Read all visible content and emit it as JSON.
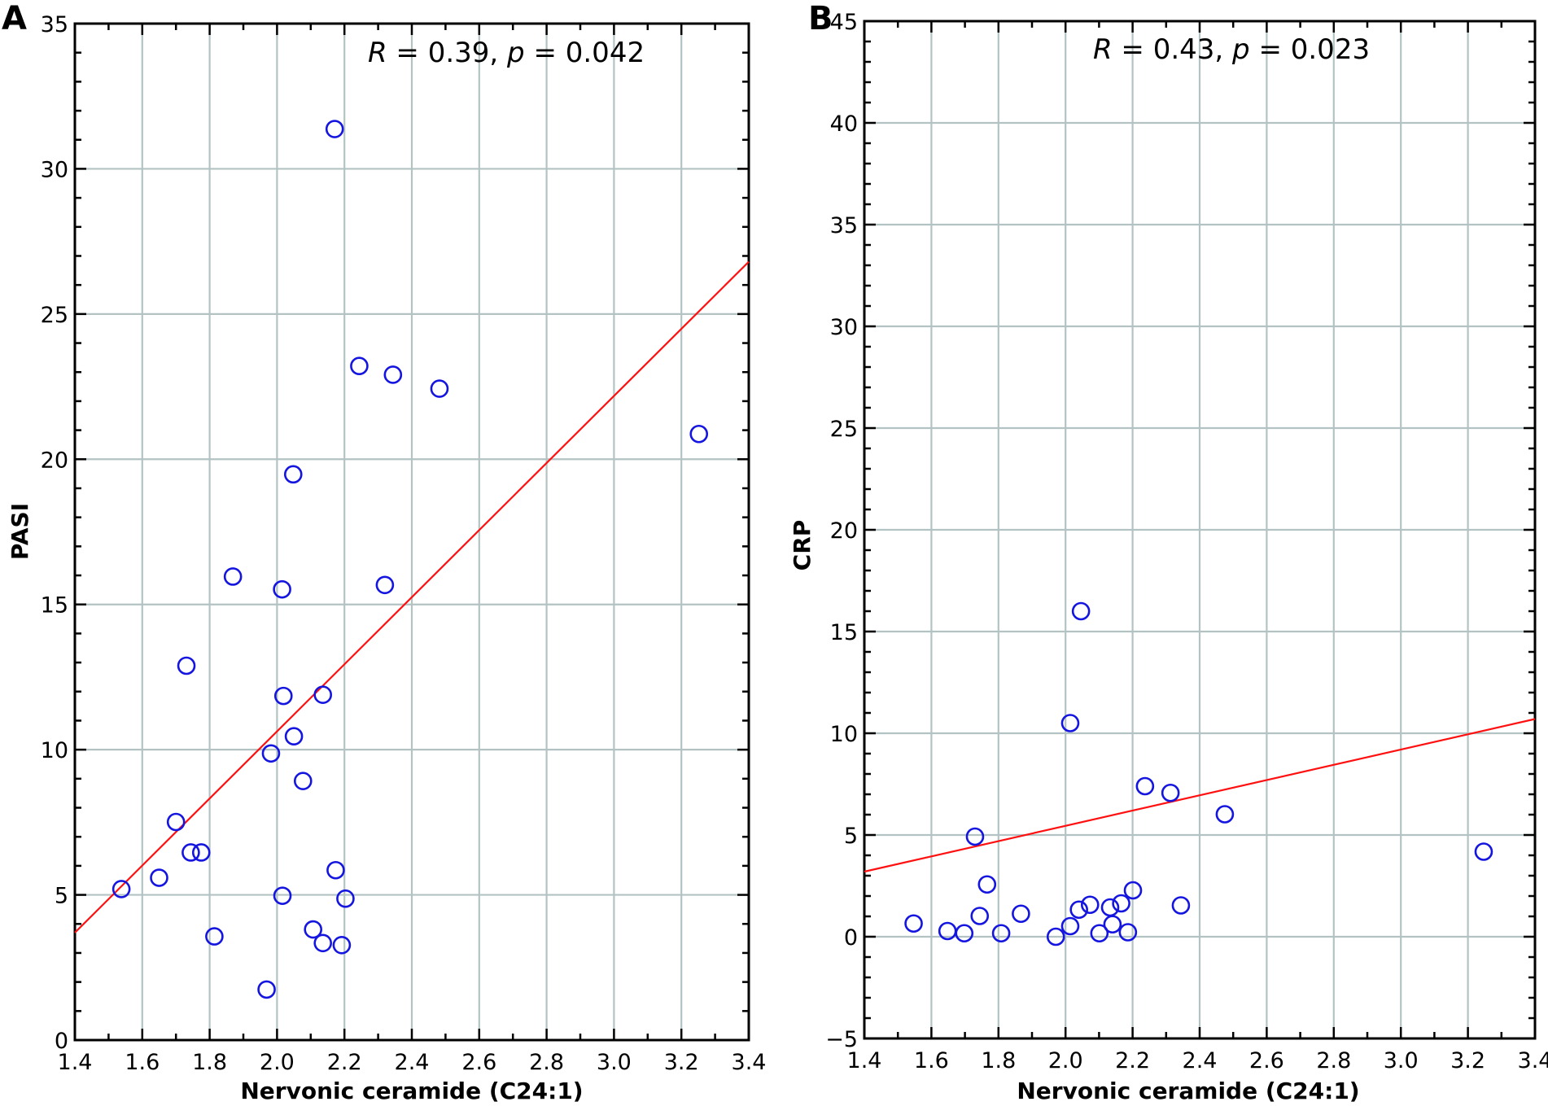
{
  "chart_data": [
    {
      "panel": "A",
      "type": "scatter",
      "xlabel": "Nervonic ceramide (C24:1)",
      "ylabel": "PASI",
      "xlim": [
        1.4,
        3.4
      ],
      "ylim": [
        0,
        35
      ],
      "xticks": [
        "1.4",
        "1.6",
        "1.8",
        "2.0",
        "2.2",
        "2.4",
        "2.6",
        "2.8",
        "3.0",
        "3.2",
        "3.4"
      ],
      "yticks": [
        "0",
        "5",
        "10",
        "15",
        "20",
        "25",
        "30",
        "35"
      ],
      "grid": true,
      "annotation": {
        "r_label": "R",
        "r_eq": " = 0.39, ",
        "p_label": "p",
        "p_eq": " = 0.042"
      },
      "points": [
        [
          1.538,
          5.2
        ],
        [
          1.65,
          5.59
        ],
        [
          1.7,
          7.51
        ],
        [
          1.731,
          12.89
        ],
        [
          1.744,
          6.46
        ],
        [
          1.775,
          6.46
        ],
        [
          1.814,
          3.57
        ],
        [
          1.869,
          15.96
        ],
        [
          1.969,
          1.74
        ],
        [
          1.982,
          9.87
        ],
        [
          2.015,
          15.52
        ],
        [
          2.016,
          4.97
        ],
        [
          2.019,
          11.85
        ],
        [
          2.048,
          19.48
        ],
        [
          2.05,
          10.46
        ],
        [
          2.077,
          8.92
        ],
        [
          2.107,
          3.81
        ],
        [
          2.136,
          3.34
        ],
        [
          2.136,
          11.89
        ],
        [
          2.171,
          31.37
        ],
        [
          2.174,
          5.85
        ],
        [
          2.192,
          3.27
        ],
        [
          2.203,
          4.87
        ],
        [
          2.244,
          23.21
        ],
        [
          2.32,
          15.67
        ],
        [
          2.344,
          22.91
        ],
        [
          2.482,
          22.43
        ],
        [
          3.252,
          20.87
        ]
      ],
      "regression_line": {
        "x": [
          1.4,
          3.4
        ],
        "y": [
          3.7,
          26.8
        ]
      },
      "marker_color": "#1515e0",
      "line_color": "#ff1010"
    },
    {
      "panel": "B",
      "type": "scatter",
      "xlabel": "Nervonic ceramide (C24:1)",
      "ylabel": "CRP",
      "xlim": [
        1.4,
        3.4
      ],
      "ylim": [
        -5,
        45
      ],
      "xticks": [
        "1.4",
        "1.6",
        "1.8",
        "2.0",
        "2.2",
        "2.4",
        "2.6",
        "2.8",
        "3.0",
        "3.2",
        "3.4"
      ],
      "yticks": [
        "−5",
        "0",
        "5",
        "10",
        "15",
        "20",
        "25",
        "30",
        "35",
        "40",
        "45"
      ],
      "grid": true,
      "annotation": {
        "r_label": "R",
        "r_eq": " = 0.43, ",
        "p_label": "p",
        "p_eq": " = 0.023"
      },
      "points": [
        [
          1.547,
          0.65
        ],
        [
          1.648,
          0.28
        ],
        [
          1.698,
          0.17
        ],
        [
          1.73,
          4.92
        ],
        [
          1.744,
          1.02
        ],
        [
          1.766,
          2.57
        ],
        [
          1.808,
          0.17
        ],
        [
          1.867,
          1.13
        ],
        [
          1.971,
          0.0
        ],
        [
          2.014,
          0.52
        ],
        [
          2.014,
          10.5
        ],
        [
          2.04,
          1.33
        ],
        [
          2.046,
          16.0
        ],
        [
          2.073,
          1.57
        ],
        [
          2.101,
          0.17
        ],
        [
          2.133,
          1.44
        ],
        [
          2.14,
          0.61
        ],
        [
          2.166,
          1.64
        ],
        [
          2.186,
          0.22
        ],
        [
          2.201,
          2.28
        ],
        [
          2.237,
          7.4
        ],
        [
          2.313,
          7.07
        ],
        [
          2.344,
          1.54
        ],
        [
          2.475,
          6.02
        ],
        [
          3.247,
          4.18
        ]
      ],
      "regression_line": {
        "x": [
          1.4,
          3.4
        ],
        "y": [
          3.2,
          10.7
        ]
      },
      "marker_color": "#1515e0",
      "line_color": "#ff1010"
    }
  ]
}
